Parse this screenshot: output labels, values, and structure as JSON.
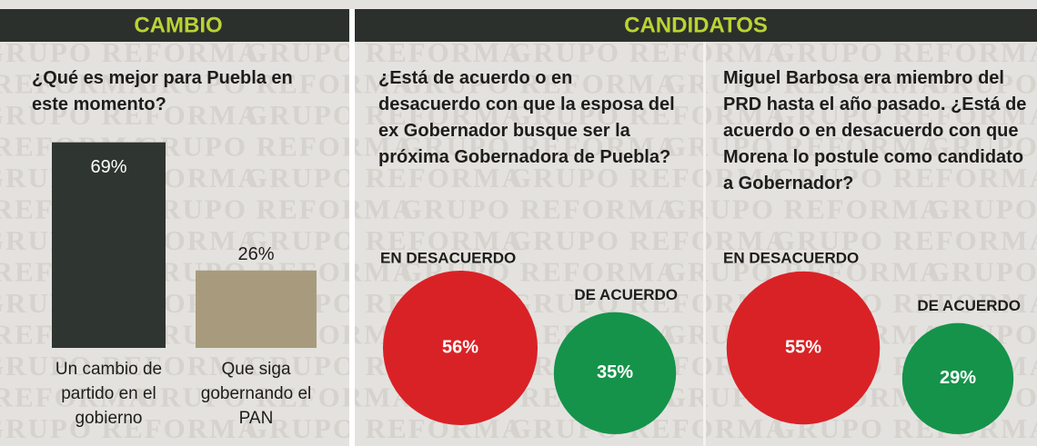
{
  "sections": [
    "CAMBIO",
    "CANDIDATOS"
  ],
  "watermark": "GRUPO REFORMA",
  "chart_data": [
    {
      "type": "bar",
      "title": "¿Qué es mejor para Puebla en este momento?",
      "categories": [
        "Un cambio de partido en el gobierno",
        "Que siga gobernando el PAN"
      ],
      "values": [
        69,
        26
      ],
      "value_labels": [
        "69%",
        "26%"
      ],
      "colors": [
        "#2f3531",
        "#a89b7d"
      ]
    },
    {
      "type": "bubble",
      "title": "¿Está de acuerdo o en desacuerdo con que la esposa del ex Gobernador busque ser la próxima Gobernadora de Puebla?",
      "categories": [
        "EN DESACUERDO",
        "DE ACUERDO"
      ],
      "values": [
        56,
        35
      ],
      "value_labels": [
        "56%",
        "35%"
      ],
      "colors": [
        "#d92226",
        "#15934a"
      ]
    },
    {
      "type": "bubble",
      "title": "Miguel Barbosa era miembro del PRD hasta el año pasado. ¿Está de acuerdo o en desacuerdo con que Morena lo postule como candidato a Gobernador?",
      "categories": [
        "EN DESACUERDO",
        "DE ACUERDO"
      ],
      "values": [
        55,
        29
      ],
      "value_labels": [
        "55%",
        "29%"
      ],
      "colors": [
        "#d92226",
        "#15934a"
      ]
    }
  ]
}
